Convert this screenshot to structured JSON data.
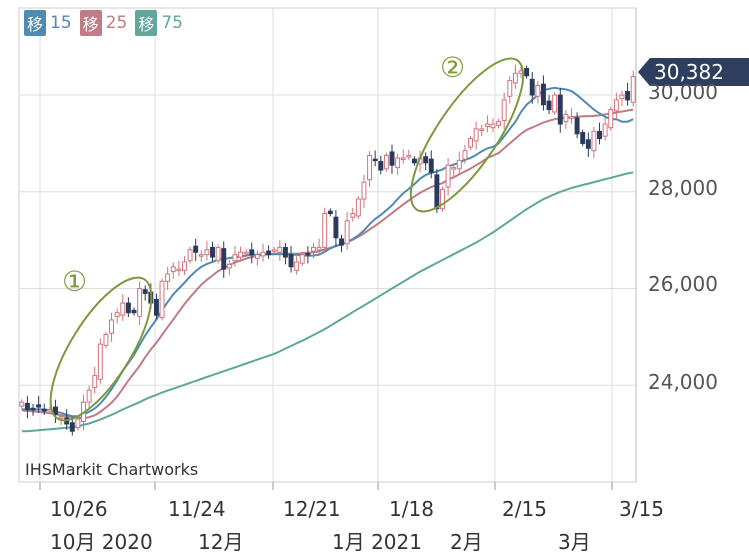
{
  "legend": [
    {
      "label": "移",
      "value": "15",
      "color": "#4f8ab3"
    },
    {
      "label": "移",
      "value": "25",
      "color": "#c07b86"
    },
    {
      "label": "移",
      "value": "75",
      "color": "#5fa79b"
    }
  ],
  "watermark": "IHSMarkit Chartworks",
  "current_price": "30,382",
  "annotations": [
    "①",
    "②"
  ],
  "colors": {
    "up": "#d0737b",
    "down": "#2b3a5c",
    "ma15": "#4f8ab3",
    "ma25": "#c07b86",
    "ma75": "#5fa79b",
    "ellipse": "#7a9a3c",
    "grid": "#dddddd"
  },
  "chart_data": {
    "type": "candlestick",
    "yticks": [
      "24,000",
      "26,000",
      "28,000",
      "30,000"
    ],
    "ylim": [
      22000,
      31800
    ],
    "xticks": [
      "10/26",
      "11/24",
      "12/21",
      "1/18",
      "2/15",
      "3/15"
    ],
    "month_labels": [
      "10月 2020",
      "12月",
      "1月 2021",
      "2月",
      "3月"
    ],
    "closes": [
      23650,
      23500,
      23520,
      23550,
      23480,
      23500,
      23400,
      23350,
      23200,
      23050,
      23300,
      23650,
      23900,
      24200,
      24850,
      25050,
      25350,
      25500,
      25700,
      25500,
      25500,
      26000,
      25900,
      25700,
      25450,
      26150,
      26300,
      26450,
      26400,
      26550,
      26800,
      26750,
      26700,
      26800,
      26650,
      26850,
      26400,
      26500,
      26700,
      26750,
      26750,
      26700,
      26700,
      26750,
      26700,
      26800,
      26850,
      26650,
      26450,
      26550,
      26700,
      26700,
      26850,
      26850,
      27550,
      27550,
      27050,
      26900,
      27400,
      27550,
      27850,
      28200,
      28750,
      28650,
      28450,
      28750,
      28550,
      28700,
      28700,
      28750,
      28600,
      28700,
      28600,
      28400,
      27650,
      28050,
      28550,
      28500,
      28650,
      28850,
      29100,
      29300,
      29300,
      29400,
      29400,
      29450,
      29900,
      30300,
      30450,
      30500,
      30400,
      30000,
      30200,
      29800,
      29700,
      30000,
      29400,
      29600,
      29550,
      29200,
      29000,
      28900,
      29250,
      29100,
      29400,
      29700,
      29900,
      30000,
      29900,
      30382
    ],
    "ma15": [
      23500,
      23500,
      23500,
      23500,
      23500,
      23480,
      23450,
      23430,
      23390,
      23360,
      23360,
      23400,
      23450,
      23520,
      23620,
      23760,
      23920,
      24100,
      24300,
      24460,
      24630,
      24830,
      25030,
      25200,
      25360,
      25550,
      25720,
      25880,
      26000,
      26120,
      26250,
      26360,
      26450,
      26510,
      26550,
      26600,
      26610,
      26630,
      26650,
      26660,
      26680,
      26700,
      26700,
      26710,
      26710,
      26710,
      26710,
      26710,
      26700,
      26700,
      26680,
      26680,
      26680,
      26700,
      26760,
      26830,
      26880,
      26910,
      26960,
      27020,
      27100,
      27200,
      27330,
      27440,
      27520,
      27620,
      27720,
      27850,
      27970,
      28060,
      28160,
      28270,
      28350,
      28390,
      28420,
      28460,
      28530,
      28560,
      28600,
      28660,
      28700,
      28760,
      28840,
      28900,
      28930,
      29000,
      29150,
      29300,
      29450,
      29650,
      29800,
      29900,
      30000,
      30100,
      30130,
      30150,
      30130,
      30120,
      30080,
      30000,
      29900,
      29800,
      29700,
      29620,
      29550,
      29500,
      29500,
      29450,
      29450,
      29500
    ],
    "ma25": [
      23480,
      23470,
      23460,
      23450,
      23440,
      23420,
      23400,
      23380,
      23360,
      23340,
      23330,
      23320,
      23340,
      23380,
      23450,
      23540,
      23640,
      23770,
      23930,
      24100,
      24250,
      24400,
      24580,
      24740,
      24880,
      25040,
      25200,
      25360,
      25520,
      25680,
      25820,
      25950,
      26080,
      26180,
      26270,
      26360,
      26420,
      26480,
      26540,
      26580,
      26620,
      26650,
      26680,
      26700,
      26710,
      26720,
      26720,
      26720,
      26720,
      26720,
      26730,
      26740,
      26750,
      26770,
      26810,
      26840,
      26880,
      26920,
      26960,
      27010,
      27070,
      27140,
      27220,
      27300,
      27380,
      27470,
      27560,
      27650,
      27740,
      27820,
      27900,
      27980,
      28040,
      28100,
      28140,
      28180,
      28250,
      28300,
      28360,
      28420,
      28480,
      28550,
      28620,
      28700,
      28750,
      28800,
      28900,
      29000,
      29100,
      29200,
      29280,
      29330,
      29380,
      29430,
      29470,
      29500,
      29520,
      29530,
      29540,
      29550,
      29560,
      29560,
      29570,
      29580,
      29600,
      29620,
      29640,
      29660,
      29680,
      29700
    ],
    "ma75": [
      23050,
      23050,
      23060,
      23070,
      23080,
      23090,
      23100,
      23110,
      23120,
      23130,
      23150,
      23180,
      23210,
      23250,
      23290,
      23340,
      23390,
      23440,
      23500,
      23550,
      23600,
      23650,
      23710,
      23760,
      23800,
      23850,
      23890,
      23930,
      23970,
      24010,
      24050,
      24090,
      24130,
      24170,
      24210,
      24250,
      24290,
      24330,
      24370,
      24410,
      24450,
      24490,
      24530,
      24570,
      24610,
      24650,
      24700,
      24760,
      24810,
      24870,
      24920,
      24980,
      25040,
      25100,
      25160,
      25230,
      25300,
      25370,
      25440,
      25510,
      25580,
      25650,
      25720,
      25790,
      25860,
      25930,
      26000,
      26070,
      26140,
      26210,
      26280,
      26350,
      26410,
      26470,
      26530,
      26590,
      26650,
      26710,
      26770,
      26830,
      26890,
      26950,
      27020,
      27090,
      27160,
      27240,
      27320,
      27400,
      27480,
      27560,
      27640,
      27710,
      27780,
      27850,
      27900,
      27950,
      28000,
      28040,
      28080,
      28110,
      28140,
      28170,
      28200,
      28230,
      28260,
      28290,
      28320,
      28350,
      28380,
      28400
    ]
  }
}
